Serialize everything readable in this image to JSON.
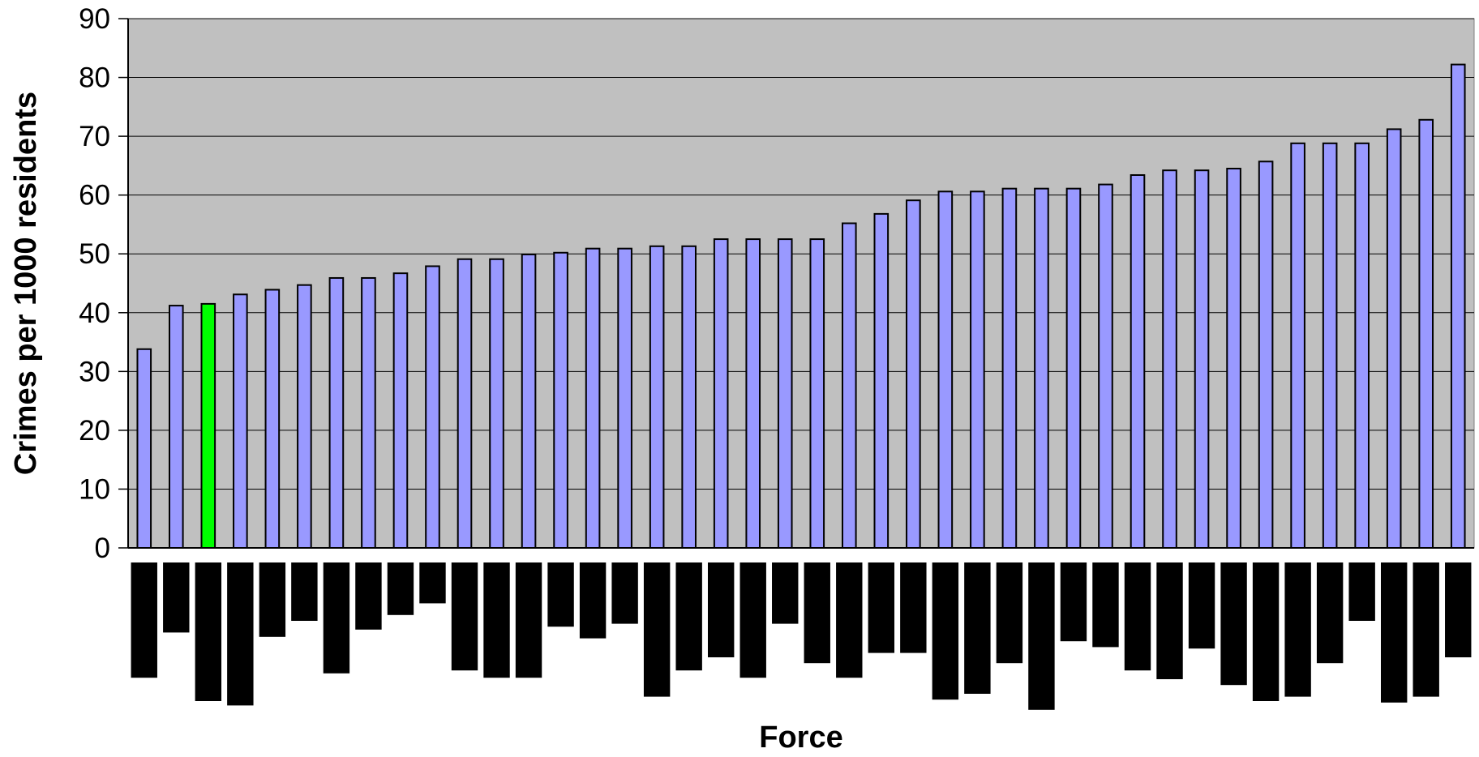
{
  "chart_data": {
    "type": "bar",
    "ylabel": "Crimes per 1000 residents",
    "xlabel": "Force",
    "ylim": [
      0,
      90
    ],
    "yticks": [
      0,
      10,
      20,
      30,
      40,
      50,
      60,
      70,
      80,
      90
    ],
    "grid": true,
    "values": [
      33.8,
      41.2,
      41.5,
      43.1,
      43.9,
      44.7,
      45.9,
      45.9,
      46.7,
      47.9,
      49.1,
      49.1,
      49.9,
      50.2,
      50.9,
      50.9,
      51.3,
      51.3,
      52.5,
      52.5,
      52.5,
      52.5,
      55.2,
      56.8,
      59.1,
      60.6,
      60.6,
      61.1,
      61.1,
      61.1,
      61.8,
      63.4,
      64.2,
      64.2,
      64.5,
      65.7,
      68.8,
      68.8,
      68.8,
      71.2,
      72.8,
      82.2
    ],
    "highlight_index": 2,
    "category_label_depths": [
      0.79,
      0.48,
      0.95,
      0.98,
      0.51,
      0.4,
      0.76,
      0.46,
      0.36,
      0.28,
      0.74,
      0.79,
      0.79,
      0.44,
      0.52,
      0.42,
      0.92,
      0.74,
      0.65,
      0.79,
      0.42,
      0.69,
      0.79,
      0.62,
      0.62,
      0.94,
      0.9,
      0.69,
      1.01,
      0.54,
      0.58,
      0.74,
      0.8,
      0.59,
      0.84,
      0.95,
      0.92,
      0.69,
      0.4,
      0.96,
      0.92,
      0.65
    ]
  },
  "colors": {
    "plot_background": "#c0c0c0",
    "bar_fill": "#9999ff",
    "highlight_fill": "#00ff00",
    "bar_stroke": "#000000",
    "gridline": "#000000",
    "redacted_label": "#000000"
  }
}
